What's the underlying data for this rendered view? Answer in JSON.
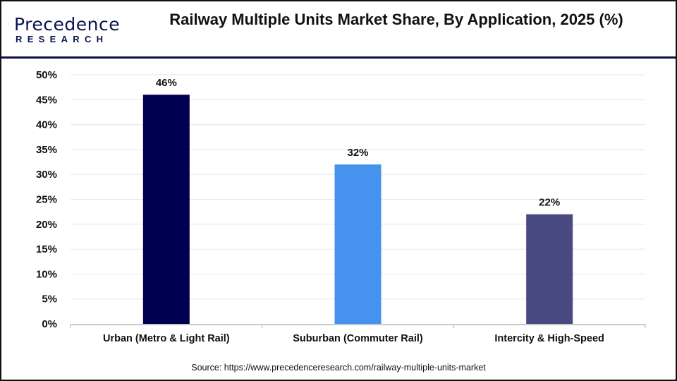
{
  "logo": {
    "main": "Precedence",
    "sub": "RESEARCH"
  },
  "chart_data": {
    "type": "bar",
    "title": "Railway Multiple Units Market Share, By Application, 2025 (%)",
    "categories": [
      "Urban (Metro & Light Rail)",
      "Suburban (Commuter Rail)",
      "Intercity & High-Speed"
    ],
    "values": [
      46,
      32,
      22
    ],
    "data_labels": [
      "46%",
      "32%",
      "22%"
    ],
    "colors": [
      "#000050",
      "#4593ef",
      "#4a4a82"
    ],
    "ylim": [
      0,
      50
    ],
    "yticks": [
      "0%",
      "5%",
      "10%",
      "15%",
      "20%",
      "25%",
      "30%",
      "35%",
      "40%",
      "45%",
      "50%"
    ],
    "xlabel": "",
    "ylabel": "",
    "grid": true,
    "legend": "none"
  },
  "source": "Source: https://www.precedenceresearch.com/railway-multiple-units-market"
}
